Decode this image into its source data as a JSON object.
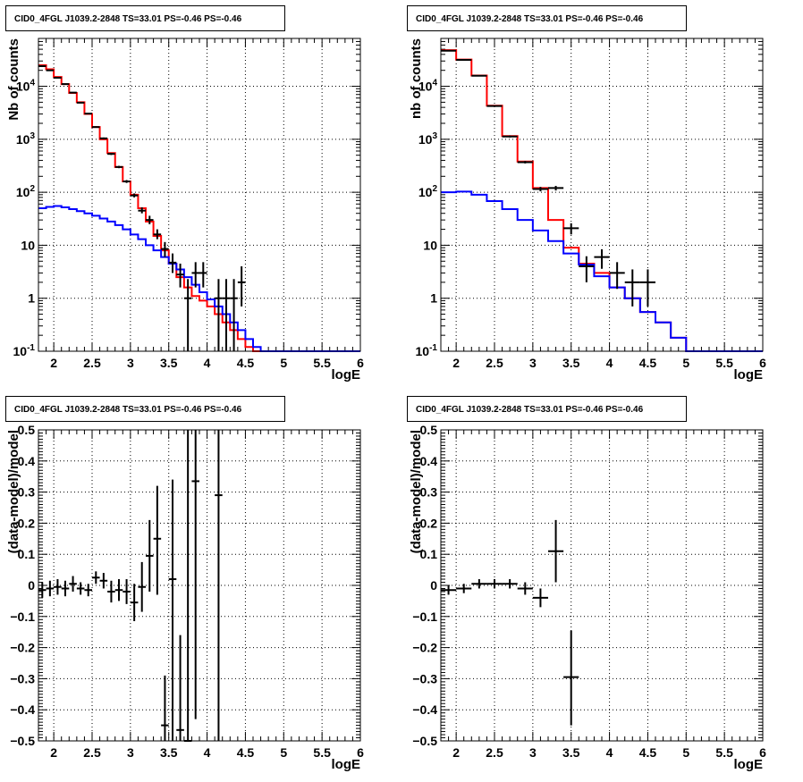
{
  "chart_data": [
    {
      "type": "line",
      "title": "CID0_4FGL J1039.2-2848 TS=33.01 PS=-0.46 PS=-0.46",
      "xlabel": "logE",
      "ylabel": "Nb of counts",
      "yscale": "log",
      "xlim": [
        1.8,
        6.0
      ],
      "ylim": [
        0.1,
        80000
      ],
      "grid": true,
      "xticks": [
        "2",
        "2.5",
        "3",
        "3.5",
        "4",
        "4.5",
        "5",
        "5.5",
        "6"
      ],
      "yticks": [
        "10^-1",
        "1",
        "10",
        "10^2",
        "10^3",
        "10^4"
      ],
      "series": [
        {
          "color": "#ff0000",
          "style": "step",
          "edges": [
            1.8,
            1.9,
            2.0,
            2.1,
            2.2,
            2.3,
            2.4,
            2.5,
            2.6,
            2.7,
            2.8,
            2.9,
            3.0,
            3.1,
            3.2,
            3.3,
            3.4,
            3.5,
            3.6,
            3.7,
            3.8,
            3.9,
            4.0,
            4.1,
            4.2,
            4.3,
            4.4,
            4.5,
            4.6,
            4.7,
            4.8,
            4.9,
            5.0,
            5.1,
            5.2,
            5.3,
            5.4,
            5.5,
            5.6,
            5.7,
            5.8,
            5.9,
            6.0
          ],
          "values": [
            25000,
            21000,
            15000,
            11000,
            7500,
            5000,
            3000,
            1700,
            1000,
            550,
            300,
            160,
            90,
            50,
            28,
            15,
            8,
            4.5,
            2.5,
            1.6,
            1.1,
            0.9,
            0.7,
            0.5,
            0.35,
            0.25,
            0.17,
            0.12,
            0.1,
            0.1,
            0.1,
            0.1,
            0.1,
            0.1,
            0.1,
            0.1,
            0.1,
            0.1,
            0.1,
            0.1,
            0.1,
            0.1
          ]
        },
        {
          "color": "#0000ff",
          "style": "step",
          "edges": [
            1.8,
            1.9,
            2.0,
            2.1,
            2.2,
            2.3,
            2.4,
            2.5,
            2.6,
            2.7,
            2.8,
            2.9,
            3.0,
            3.1,
            3.2,
            3.3,
            3.4,
            3.5,
            3.6,
            3.7,
            3.8,
            3.9,
            4.0,
            4.1,
            4.2,
            4.3,
            4.4,
            4.5,
            4.6,
            4.7,
            4.8,
            4.9,
            5.0,
            5.1,
            5.2,
            5.3,
            5.4,
            5.5,
            5.6,
            5.7,
            5.8,
            5.9,
            6.0
          ],
          "values": [
            50,
            53,
            55,
            52,
            48,
            44,
            40,
            36,
            32,
            28,
            24,
            20,
            16,
            13,
            10,
            8,
            6,
            4.5,
            3.5,
            2.5,
            1.8,
            1.3,
            0.95,
            0.7,
            0.5,
            0.35,
            0.25,
            0.17,
            0.12,
            0.1,
            0.1,
            0.1,
            0.1,
            0.1,
            0.1,
            0.1,
            0.1,
            0.1,
            0.1,
            0.1,
            0.1,
            0.1
          ]
        },
        {
          "color": "#000000",
          "style": "points",
          "x": [
            1.85,
            1.95,
            2.05,
            2.15,
            2.25,
            2.35,
            2.45,
            2.55,
            2.65,
            2.75,
            2.85,
            2.95,
            3.05,
            3.15,
            3.25,
            3.35,
            3.45,
            3.55,
            3.65,
            3.75,
            3.85,
            3.95,
            4.15,
            4.25,
            4.35,
            4.45
          ],
          "y": [
            24000,
            20000,
            14500,
            11000,
            7600,
            4900,
            3050,
            1700,
            1040,
            530,
            300,
            160,
            87,
            45,
            30,
            16,
            8.5,
            4.7,
            2.8,
            1,
            3,
            3,
            1,
            1,
            1,
            2
          ],
          "xerr": [
            0.05,
            0.05,
            0.05,
            0.05,
            0.05,
            0.05,
            0.05,
            0.05,
            0.05,
            0.05,
            0.05,
            0.05,
            0.05,
            0.05,
            0.05,
            0.05,
            0.05,
            0.05,
            0.05,
            0.05,
            0.05,
            0.05,
            0.05,
            0.05,
            0.05,
            0.05
          ],
          "ylo": [
            23800,
            19800,
            14300,
            10800,
            7450,
            4800,
            2980,
            1650,
            1000,
            505,
            285,
            150,
            80,
            40,
            25,
            13,
            6,
            3,
            1.6,
            0.1,
            1.6,
            1.6,
            0.1,
            0.1,
            0.1,
            0.7
          ],
          "yhi": [
            24200,
            20200,
            14700,
            11200,
            7750,
            5000,
            3120,
            1750,
            1080,
            555,
            315,
            170,
            95,
            52,
            36,
            20,
            11.5,
            7,
            4.5,
            2.3,
            4.8,
            4.8,
            2.3,
            2.3,
            2.3,
            4
          ]
        }
      ]
    },
    {
      "type": "line",
      "title": "CID0_4FGL J1039.2-2848 TS=33.01 PS=-0.46 PS=-0.46",
      "xlabel": "logE",
      "ylabel": "nb of counts",
      "yscale": "log",
      "xlim": [
        1.8,
        6.0
      ],
      "ylim": [
        0.1,
        80000
      ],
      "grid": true,
      "xticks": [
        "2",
        "2.5",
        "3",
        "3.5",
        "4",
        "4.5",
        "5",
        "5.5",
        "6"
      ],
      "yticks": [
        "10^-1",
        "1",
        "10",
        "10^2",
        "10^3",
        "10^4"
      ],
      "series": [
        {
          "color": "#ff0000",
          "style": "step",
          "edges": [
            1.8,
            2.0,
            2.2,
            2.4,
            2.6,
            2.8,
            3.0,
            3.2,
            3.4,
            3.6,
            3.8,
            4.0,
            4.2,
            4.4,
            4.6,
            4.8,
            5.0,
            5.2,
            5.4,
            5.6,
            5.8,
            6.0
          ],
          "values": [
            48000,
            32000,
            16000,
            4300,
            1150,
            380,
            120,
            30,
            9,
            4.5,
            3,
            1.6,
            1,
            0.55,
            0.35,
            0.18,
            0.1,
            0.1,
            0.1,
            0.1,
            0.1
          ]
        },
        {
          "color": "#0000ff",
          "style": "step",
          "edges": [
            1.8,
            2.0,
            2.2,
            2.4,
            2.6,
            2.8,
            3.0,
            3.2,
            3.4,
            3.6,
            3.8,
            4.0,
            4.2,
            4.4,
            4.6,
            4.8,
            5.0,
            5.2,
            5.4,
            5.6,
            5.8,
            6.0
          ],
          "values": [
            100,
            103,
            90,
            68,
            48,
            30,
            19,
            12,
            7,
            4.3,
            2.6,
            1.6,
            1,
            0.55,
            0.35,
            0.18,
            0.1,
            0.1,
            0.1,
            0.1,
            0.1
          ]
        },
        {
          "color": "#000000",
          "style": "points",
          "x": [
            1.9,
            2.1,
            2.3,
            2.5,
            2.7,
            2.9,
            3.1,
            3.3,
            3.5,
            3.7,
            3.9,
            4.1,
            4.3,
            4.5
          ],
          "y": [
            47000,
            31500,
            15800,
            4250,
            1130,
            370,
            115,
            120,
            21,
            4,
            6,
            3,
            2,
            2
          ],
          "xerr": [
            0.1,
            0.1,
            0.1,
            0.1,
            0.1,
            0.1,
            0.1,
            0.1,
            0.1,
            0.1,
            0.1,
            0.1,
            0.1,
            0.1
          ],
          "ylo": [
            46700,
            31300,
            15600,
            4150,
            1080,
            350,
            104,
            108,
            16,
            2,
            3.6,
            1.5,
            0.7,
            0.7
          ],
          "yhi": [
            47300,
            31700,
            16000,
            4350,
            1180,
            390,
            126,
            132,
            26,
            6.2,
            8.4,
            4.8,
            3.5,
            3.5
          ]
        }
      ]
    },
    {
      "type": "scatter",
      "title": "CID0_4FGL J1039.2-2848 TS=33.01 PS=-0.46 PS=-0.46",
      "xlabel": "logE",
      "ylabel": "(data-model)/model",
      "xlim": [
        1.8,
        6.0
      ],
      "ylim": [
        -0.5,
        0.5
      ],
      "grid": true,
      "xticks": [
        "2",
        "2.5",
        "3",
        "3.5",
        "4",
        "4.5",
        "5",
        "5.5",
        "6"
      ],
      "yticks": [
        "-0.5",
        "-0.4",
        "-0.3",
        "-0.2",
        "-0.1",
        "0",
        "0.1",
        "0.2",
        "0.3",
        "0.4",
        "0.5"
      ],
      "series": [
        {
          "color": "#000000",
          "x": [
            1.85,
            1.95,
            2.05,
            2.15,
            2.25,
            2.35,
            2.45,
            2.55,
            2.65,
            2.75,
            2.85,
            2.95,
            3.05,
            3.15,
            3.25,
            3.35,
            3.45,
            3.55,
            3.65,
            3.75,
            3.85,
            4.15
          ],
          "y": [
            -0.015,
            -0.01,
            -0.005,
            -0.01,
            0.005,
            -0.01,
            -0.015,
            0.025,
            0.015,
            -0.02,
            -0.015,
            -0.02,
            -0.055,
            -0.005,
            0.095,
            0.15,
            -0.45,
            0.02,
            -0.465,
            -0.5,
            0.335,
            0.29
          ],
          "xerr": [
            0.05,
            0.05,
            0.05,
            0.05,
            0.05,
            0.05,
            0.05,
            0.05,
            0.05,
            0.05,
            0.05,
            0.05,
            0.05,
            0.05,
            0.05,
            0.05,
            0.05,
            0.05,
            0.05,
            0.05,
            0.05,
            0.05
          ],
          "ylo": [
            -0.04,
            -0.035,
            -0.03,
            -0.035,
            -0.02,
            -0.03,
            -0.035,
            0.005,
            -0.01,
            -0.055,
            -0.05,
            -0.06,
            -0.115,
            -0.085,
            -0.02,
            -0.03,
            -0.5,
            -0.5,
            -0.5,
            -0.5,
            -0.43,
            -0.5
          ],
          "yhi": [
            0.01,
            0.015,
            0.02,
            0.015,
            0.03,
            0.01,
            0.005,
            0.045,
            0.04,
            0.015,
            0.02,
            0.02,
            0.005,
            0.075,
            0.21,
            0.32,
            -0.29,
            0.34,
            -0.16,
            0.5,
            0.5,
            0.5
          ]
        }
      ]
    },
    {
      "type": "scatter",
      "title": "CID0_4FGL J1039.2-2848 TS=33.01 PS=-0.46 PS=-0.46",
      "xlabel": "logE",
      "ylabel": "(data-model)/model",
      "xlim": [
        1.8,
        6.0
      ],
      "ylim": [
        -0.5,
        0.5
      ],
      "grid": true,
      "xticks": [
        "2",
        "2.5",
        "3",
        "3.5",
        "4",
        "4.5",
        "5",
        "5.5",
        "6"
      ],
      "yticks": [
        "-0.5",
        "-0.4",
        "-0.3",
        "-0.2",
        "-0.1",
        "0",
        "0.1",
        "0.2",
        "0.3",
        "0.4",
        "0.5"
      ],
      "series": [
        {
          "color": "#000000",
          "x": [
            1.9,
            2.1,
            2.3,
            2.5,
            2.7,
            2.9,
            3.1,
            3.3,
            3.5
          ],
          "y": [
            -0.015,
            -0.01,
            0.005,
            0.005,
            0.005,
            -0.01,
            -0.04,
            0.11,
            -0.295
          ],
          "xerr": [
            0.1,
            0.1,
            0.1,
            0.1,
            0.1,
            0.1,
            0.1,
            0.1,
            0.1
          ],
          "ylo": [
            -0.03,
            -0.025,
            -0.01,
            -0.01,
            -0.01,
            -0.03,
            -0.07,
            0.01,
            -0.45
          ],
          "yhi": [
            0.0,
            0.005,
            0.02,
            0.02,
            0.02,
            0.01,
            -0.01,
            0.21,
            -0.145
          ]
        }
      ]
    }
  ]
}
